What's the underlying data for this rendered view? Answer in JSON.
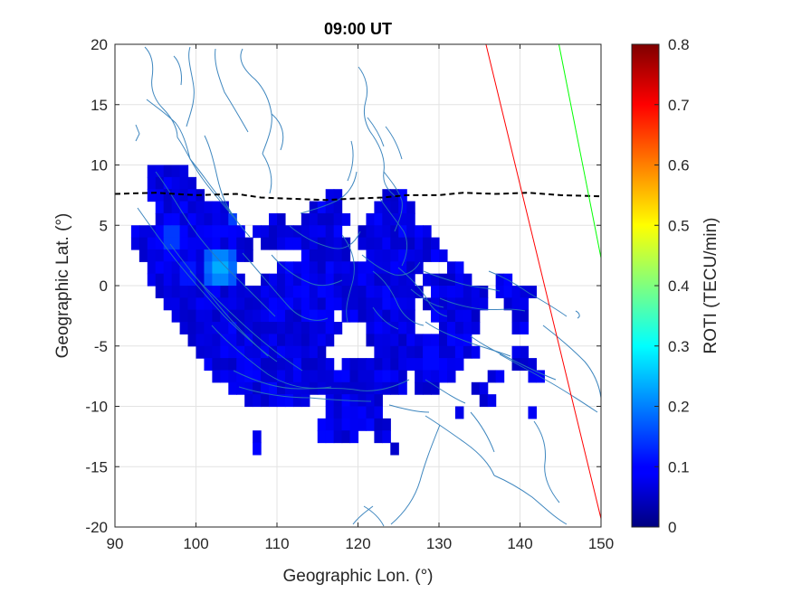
{
  "chart_data": {
    "type": "heatmap",
    "title": "09:00 UT",
    "xlabel": "Geographic Lon. (°)",
    "ylabel": "Geographic Lat. (°)",
    "xlim": [
      90,
      150
    ],
    "ylim": [
      -20,
      20
    ],
    "xticks": [
      "90",
      "100",
      "110",
      "120",
      "130",
      "140",
      "150"
    ],
    "yticks": [
      "20",
      "15",
      "10",
      "5",
      "0",
      "-5",
      "-10",
      "-15",
      "-20"
    ],
    "grid": true,
    "colorbar": {
      "label": "ROTI (TECU/min)",
      "range": [
        0,
        0.8
      ],
      "ticks": [
        "0",
        "0.1",
        "0.2",
        "0.3",
        "0.4",
        "0.5",
        "0.6",
        "0.7",
        "0.8"
      ],
      "colormap": "jet"
    },
    "roti_cells": {
      "lat_bands": [
        {
          "lat": 9.5,
          "spans": [
            [
              94,
              99
            ]
          ]
        },
        {
          "lat": 8.5,
          "spans": [
            [
              94,
              100
            ]
          ]
        },
        {
          "lat": 7.5,
          "spans": [
            [
              94,
              101
            ],
            [
              116,
              118
            ],
            [
              123,
              126
            ]
          ]
        },
        {
          "lat": 6.5,
          "spans": [
            [
              95,
              104
            ],
            [
              114,
              118
            ],
            [
              122,
              127
            ]
          ]
        },
        {
          "lat": 5.5,
          "spans": [
            [
              95,
              105
            ],
            [
              109,
              111
            ],
            [
              113,
              119
            ],
            [
              121,
              127
            ]
          ]
        },
        {
          "lat": 4.5,
          "spans": [
            [
              92,
              106
            ],
            [
              107,
              118
            ],
            [
              120,
              129
            ]
          ]
        },
        {
          "lat": 3.5,
          "spans": [
            [
              92,
              107
            ],
            [
              108,
              119
            ],
            [
              120,
              130
            ]
          ]
        },
        {
          "lat": 2.5,
          "spans": [
            [
              93,
              107
            ],
            [
              113,
              119
            ],
            [
              121,
              131
            ]
          ]
        },
        {
          "lat": 1.5,
          "spans": [
            [
              94,
              105
            ],
            [
              110,
              128
            ],
            [
              131,
              133
            ]
          ]
        },
        {
          "lat": 0.5,
          "spans": [
            [
              94,
              106
            ],
            [
              108,
              127
            ],
            [
              128,
              134
            ],
            [
              137,
              139
            ]
          ]
        },
        {
          "lat": -0.5,
          "spans": [
            [
              95,
              128
            ],
            [
              129,
              136
            ],
            [
              137,
              142
            ]
          ]
        },
        {
          "lat": -1.5,
          "spans": [
            [
              96,
              127
            ],
            [
              128,
              136
            ],
            [
              138,
              141
            ]
          ]
        },
        {
          "lat": -2.5,
          "spans": [
            [
              97,
              117
            ],
            [
              118,
              127
            ],
            [
              129,
              135
            ],
            [
              139,
              141
            ]
          ]
        },
        {
          "lat": -3.5,
          "spans": [
            [
              98,
              118
            ],
            [
              121,
              127
            ],
            [
              130,
              135
            ],
            [
              139,
              141
            ]
          ]
        },
        {
          "lat": -4.5,
          "spans": [
            [
              99,
              117
            ],
            [
              121,
              134
            ]
          ]
        },
        {
          "lat": -5.5,
          "spans": [
            [
              100,
              116
            ],
            [
              122,
              135
            ],
            [
              139,
              141
            ]
          ]
        },
        {
          "lat": -6.5,
          "spans": [
            [
              101,
              117
            ],
            [
              118,
              127
            ],
            [
              127,
              133
            ],
            [
              139,
              142
            ]
          ]
        },
        {
          "lat": -7.5,
          "spans": [
            [
              102,
              126
            ],
            [
              127,
              132
            ],
            [
              136,
              138
            ],
            [
              141,
              143
            ]
          ]
        },
        {
          "lat": -8.5,
          "spans": [
            [
              104,
              126
            ],
            [
              127,
              130
            ],
            [
              134,
              136
            ]
          ]
        },
        {
          "lat": -9.5,
          "spans": [
            [
              106,
              114
            ],
            [
              116,
              123
            ],
            [
              135,
              137
            ]
          ]
        },
        {
          "lat": -10.5,
          "spans": [
            [
              116,
              123
            ],
            [
              132,
              133
            ],
            [
              141,
              142
            ]
          ]
        },
        {
          "lat": -11.5,
          "spans": [
            [
              115,
              124
            ]
          ]
        },
        {
          "lat": -12.5,
          "spans": [
            [
              107,
              108
            ],
            [
              115,
              120
            ],
            [
              122,
              124
            ]
          ]
        },
        {
          "lat": -13.5,
          "spans": [
            [
              107,
              108
            ],
            [
              124,
              125
            ]
          ]
        }
      ],
      "typical_value": 0.08,
      "hotspots": [
        {
          "lon": 97,
          "lat": 4,
          "value": 0.18
        },
        {
          "lon": 103,
          "lat": 1.5,
          "value": 0.26
        },
        {
          "lon": 105.5,
          "lat": 6.5,
          "value": 0.22
        },
        {
          "lon": 99,
          "lat": 1,
          "value": 0.15
        },
        {
          "lon": 129,
          "lat": -6,
          "value": 0.14
        },
        {
          "lon": 117,
          "lat": -2,
          "value": 0.13
        }
      ]
    },
    "overlays": [
      {
        "kind": "dashed-line",
        "color": "#000000",
        "points": [
          [
            90,
            7.6
          ],
          [
            95,
            7.7
          ],
          [
            100,
            7.5
          ],
          [
            105,
            7.6
          ],
          [
            108,
            7.3
          ],
          [
            112,
            7.2
          ],
          [
            116,
            7.1
          ],
          [
            119,
            7.2
          ],
          [
            123,
            7.3
          ],
          [
            126,
            7.5
          ],
          [
            130,
            7.5
          ],
          [
            133,
            7.7
          ],
          [
            137,
            7.6
          ],
          [
            141,
            7.7
          ],
          [
            145,
            7.5
          ],
          [
            150,
            7.4
          ]
        ]
      },
      {
        "kind": "line",
        "color": "#ff0000",
        "points": [
          [
            135.8,
            20
          ],
          [
            150,
            -19.3
          ]
        ]
      },
      {
        "kind": "line",
        "color": "#00ff00",
        "points": [
          [
            144.8,
            20
          ],
          [
            150,
            2.3
          ]
        ]
      }
    ],
    "coastline_color": "#1f77b4"
  }
}
